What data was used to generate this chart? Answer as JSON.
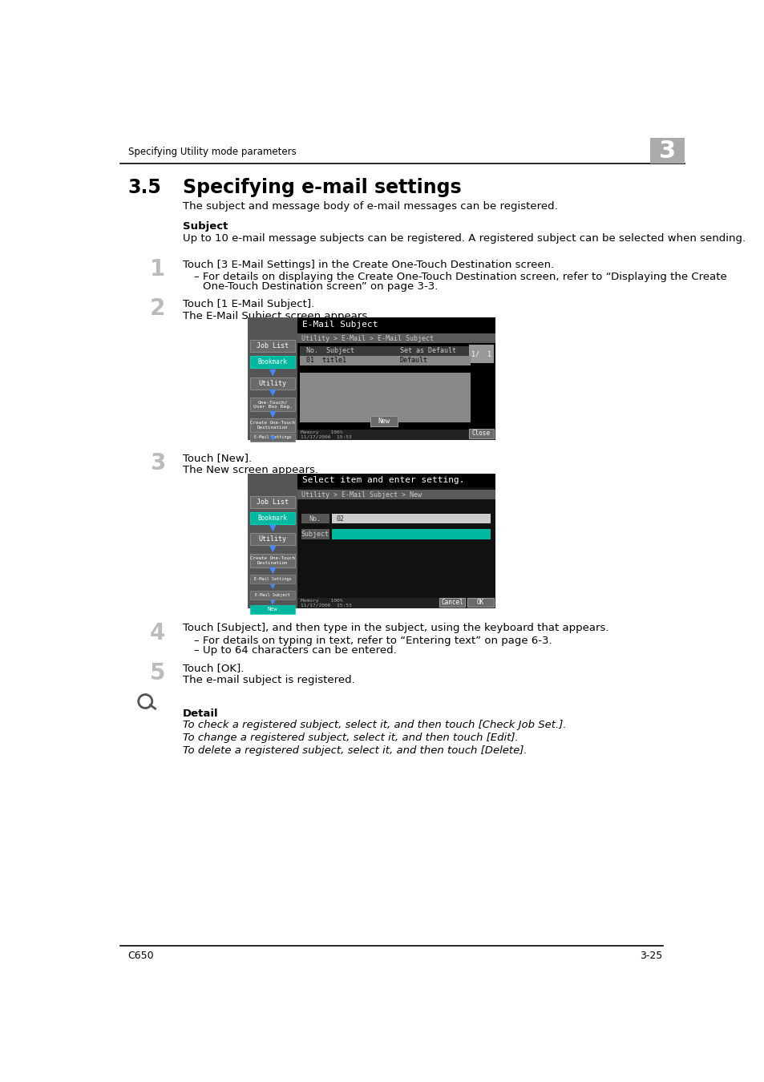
{
  "page_title": "Specifying Utility mode parameters",
  "chapter_num": "3",
  "section_num": "3.5",
  "section_title": "Specifying e-mail settings",
  "intro_text": "The subject and message body of e-mail messages can be registered.",
  "subsection_title": "Subject",
  "subsection_intro": "Up to 10 e-mail message subjects can be registered. A registered subject can be selected when sending.",
  "step1_text": "Touch [3 E-Mail Settings] in the Create One-Touch Destination screen.",
  "step1_bullet1a": "For details on displaying the Create One-Touch Destination screen, refer to “Displaying the Create",
  "step1_bullet1b": "One-Touch Destination screen” on page 3-3.",
  "step2_text": "Touch [1 E-Mail Subject].",
  "step2_sub": "The E-Mail Subject screen appears.",
  "step3_text": "Touch [New].",
  "step3_sub": "The New screen appears.",
  "step4_text": "Touch [Subject], and then type in the subject, using the keyboard that appears.",
  "step4_bullet1": "For details on typing in text, refer to “Entering text” on page 6-3.",
  "step4_bullet2": "Up to 64 characters can be entered.",
  "step5_text": "Touch [OK].",
  "step5_sub": "The e-mail subject is registered.",
  "detail_label": "Detail",
  "detail_line1": "To check a registered subject, select it, and then touch [Check Job Set.].",
  "detail_line2": "To change a registered subject, select it, and then touch [Edit].",
  "detail_line3": "To delete a registered subject, select it, and then touch [Delete].",
  "footer_left": "C650",
  "footer_right": "3-25",
  "bg_color": "#ffffff",
  "text_color": "#000000",
  "teal_color": "#00b8a0",
  "sidebar_bg": "#555555",
  "sidebar_btn_bg": "#6a6a6a",
  "main_bg": "#888888",
  "title_bar_bg": "#000000",
  "breadcrumb_bg": "#5a5a5a",
  "table_header_bg": "#4a4a4a",
  "table_row_bg": "#888888",
  "page_num_bg": "#7a7a7a",
  "status_bar_bg": "#333333"
}
